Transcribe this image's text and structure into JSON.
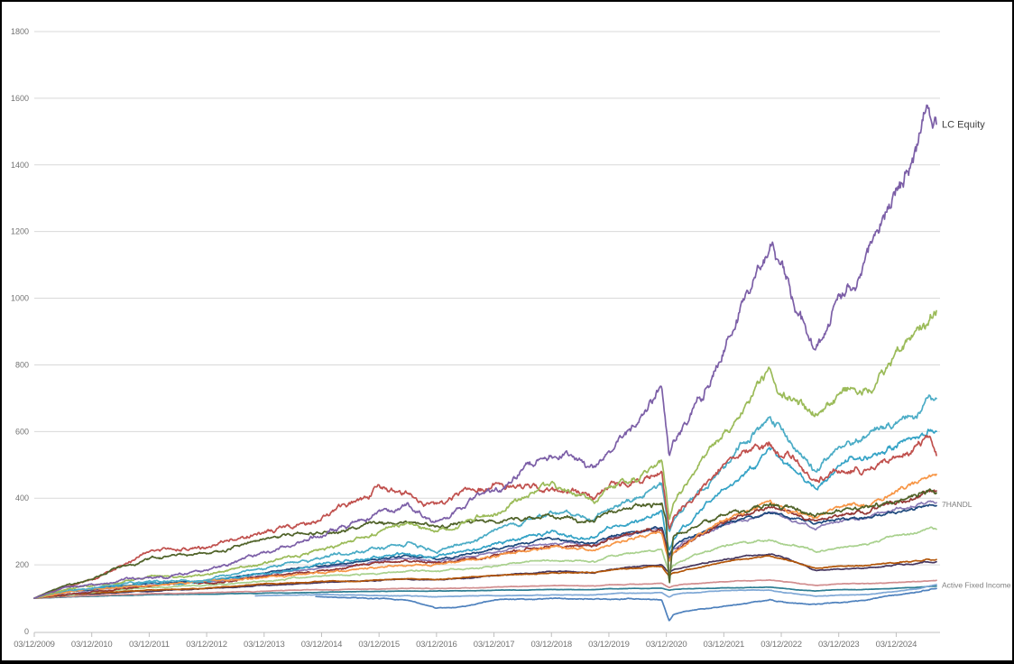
{
  "frame": {
    "background": "#ffffff",
    "border_color": "#000000"
  },
  "chart_data": {
    "type": "line",
    "title": "",
    "xlabel": "",
    "ylabel": "",
    "grid": true,
    "legend_position": "right-edge-annotations",
    "y_axis": {
      "min": 0,
      "max": 1800,
      "step": 200,
      "tick_labels": [
        "0",
        "200",
        "400",
        "600",
        "800",
        "1000",
        "1200",
        "1400",
        "1600",
        "1800"
      ]
    },
    "x_axis": {
      "t_max": 15.7,
      "tick_t": [
        0,
        1,
        2,
        3,
        4,
        5,
        6,
        7,
        8,
        9,
        10,
        11,
        12,
        13,
        14,
        15
      ],
      "tick_labels": [
        "03/12/2009",
        "03/12/2010",
        "03/12/2011",
        "03/12/2012",
        "03/12/2013",
        "03/12/2014",
        "03/12/2015",
        "03/12/2016",
        "03/12/2017",
        "03/12/2018",
        "03/12/2019",
        "03/12/2020",
        "03/12/2021",
        "03/12/2022",
        "03/12/2023",
        "03/12/2024"
      ]
    },
    "style": {
      "grid_color": "#d9d9d9",
      "axis_color": "#bfbfbf",
      "tick_label_color": "#737373",
      "line_width": 1.7
    },
    "anchor_t": [
      0,
      0.5,
      1,
      2,
      3,
      3.85,
      4,
      4.9,
      5,
      6,
      6.5,
      7,
      7.5,
      8,
      9,
      9.75,
      10,
      10.5,
      10.92,
      11,
      11.05,
      11.12,
      11.3,
      12,
      12.8,
      13.1,
      13.6,
      14,
      14.5,
      15,
      15.3,
      15.55,
      15.7
    ],
    "series": [
      {
        "id": "teal",
        "color": "#2E7E93",
        "vol": 0.002,
        "values": [
          100,
          103,
          106,
          110,
          112,
          114,
          115,
          117,
          118,
          120,
          121,
          121,
          122,
          124,
          126,
          126,
          128,
          129,
          130,
          126,
          124,
          126,
          128,
          131,
          133,
          128,
          122,
          125,
          126,
          130,
          132,
          135,
          136
        ]
      },
      {
        "id": "pink",
        "color": "#D18E8F",
        "vol": 0.003,
        "values": [
          100,
          105,
          108,
          113,
          116,
          120,
          121,
          125,
          125,
          128,
          130,
          129,
          131,
          134,
          138,
          137,
          140,
          143,
          145,
          137,
          132,
          138,
          142,
          150,
          155,
          148,
          138,
          142,
          143,
          147,
          149,
          152,
          153
        ]
      },
      {
        "id": "steel-blue",
        "color": "#7FA8D6",
        "vol": 0.003,
        "label": "Active Fixed Income",
        "label_color": "#7f7f7f",
        "label_size": 8.5,
        "values": [
          null,
          null,
          null,
          null,
          null,
          107,
          108,
          110,
          110,
          108,
          107,
          104,
          106,
          108,
          110,
          110,
          113,
          115,
          117,
          109,
          105,
          111,
          115,
          122,
          124,
          116,
          106,
          110,
          111,
          120,
          126,
          135,
          140
        ]
      },
      {
        "id": "blue-late",
        "color": "#4E81BD",
        "vol": 0.006,
        "values": [
          null,
          null,
          null,
          null,
          null,
          null,
          null,
          105,
          104,
          100,
          95,
          70,
          75,
          95,
          100,
          97,
          98,
          97,
          95,
          55,
          32,
          50,
          60,
          75,
          95,
          88,
          82,
          88,
          95,
          110,
          116,
          124,
          128
        ]
      },
      {
        "id": "dark-purple",
        "color": "#45365E",
        "vol": 0.004,
        "values": [
          100,
          107,
          112,
          122,
          128,
          137,
          138,
          146,
          147,
          154,
          157,
          156,
          161,
          168,
          180,
          177,
          186,
          194,
          200,
          183,
          175,
          185,
          192,
          215,
          235,
          220,
          182,
          188,
          190,
          200,
          204,
          209,
          210
        ]
      },
      {
        "id": "brown",
        "color": "#B25508",
        "vol": 0.004,
        "values": [
          100,
          108,
          114,
          124,
          130,
          139,
          140,
          147,
          148,
          155,
          158,
          156,
          162,
          168,
          178,
          175,
          183,
          190,
          196,
          178,
          168,
          178,
          185,
          208,
          228,
          215,
          188,
          196,
          198,
          208,
          211,
          215,
          216
        ]
      },
      {
        "id": "light-green",
        "color": "#A9D18E",
        "vol": 0.006,
        "values": [
          100,
          110,
          118,
          132,
          138,
          150,
          152,
          164,
          165,
          178,
          185,
          178,
          188,
          198,
          218,
          210,
          225,
          238,
          248,
          205,
          180,
          200,
          215,
          255,
          278,
          262,
          242,
          255,
          262,
          285,
          292,
          305,
          310
        ]
      },
      {
        "id": "med-purple",
        "color": "#8A7BB5",
        "vol": 0.006,
        "values": [
          100,
          112,
          122,
          140,
          148,
          166,
          168,
          188,
          190,
          210,
          220,
          210,
          225,
          240,
          268,
          258,
          278,
          295,
          310,
          255,
          225,
          248,
          270,
          320,
          355,
          340,
          310,
          330,
          340,
          365,
          380,
          395,
          393
        ]
      },
      {
        "id": "navy",
        "color": "#1F497D",
        "vol": 0.006,
        "label": "7HANDL",
        "label_color": "#7f7f7f",
        "label_size": 8.5,
        "values": [
          100,
          115,
          125,
          145,
          152,
          173,
          175,
          196,
          198,
          220,
          228,
          218,
          232,
          248,
          278,
          268,
          288,
          305,
          318,
          260,
          230,
          255,
          278,
          325,
          358,
          345,
          320,
          335,
          342,
          360,
          368,
          380,
          382
        ]
      },
      {
        "id": "maroon",
        "color": "#943634",
        "vol": 0.008,
        "values": [
          100,
          112,
          120,
          138,
          145,
          163,
          165,
          183,
          185,
          205,
          215,
          205,
          220,
          235,
          265,
          255,
          275,
          290,
          305,
          245,
          215,
          240,
          265,
          330,
          370,
          350,
          330,
          350,
          360,
          395,
          415,
          430,
          425
        ]
      },
      {
        "id": "cyan-2",
        "color": "#35A3C6",
        "vol": 0.009,
        "values": [
          100,
          118,
          128,
          145,
          150,
          172,
          175,
          198,
          200,
          225,
          235,
          220,
          240,
          265,
          300,
          280,
          310,
          330,
          360,
          290,
          250,
          280,
          310,
          420,
          545,
          500,
          430,
          490,
          520,
          560,
          570,
          610,
          600
        ]
      },
      {
        "id": "orange",
        "color": "#F79646",
        "vol": 0.008,
        "values": [
          100,
          115,
          125,
          140,
          148,
          160,
          162,
          174,
          175,
          190,
          200,
          195,
          210,
          225,
          255,
          245,
          265,
          285,
          300,
          240,
          210,
          235,
          260,
          330,
          385,
          360,
          335,
          360,
          375,
          420,
          445,
          470,
          480
        ]
      },
      {
        "id": "cyan-1",
        "color": "#4BACC6",
        "vol": 0.01,
        "values": [
          100,
          122,
          132,
          150,
          155,
          180,
          185,
          212,
          215,
          250,
          265,
          245,
          270,
          300,
          360,
          330,
          365,
          395,
          430,
          340,
          290,
          325,
          360,
          490,
          650,
          580,
          490,
          560,
          590,
          640,
          650,
          700,
          685
        ]
      },
      {
        "id": "red",
        "color": "#C0504D",
        "vol": 0.011,
        "values": [
          100,
          135,
          152,
          240,
          245,
          295,
          300,
          330,
          335,
          420,
          395,
          365,
          420,
          435,
          430,
          395,
          430,
          435,
          460,
          360,
          300,
          340,
          380,
          490,
          560,
          520,
          460,
          490,
          480,
          520,
          555,
          590,
          520
        ]
      },
      {
        "id": "dark-olive",
        "color": "#4F6228",
        "vol": 0.009,
        "values": [
          100,
          138,
          158,
          220,
          235,
          270,
          275,
          298,
          300,
          320,
          330,
          310,
          325,
          330,
          345,
          330,
          360,
          380,
          385,
          330,
          135,
          290,
          300,
          345,
          385,
          370,
          340,
          355,
          365,
          390,
          400,
          415,
          412
        ]
      },
      {
        "id": "green",
        "color": "#9BBB59",
        "vol": 0.01,
        "values": [
          100,
          125,
          138,
          158,
          165,
          195,
          200,
          240,
          245,
          300,
          325,
          300,
          330,
          355,
          430,
          385,
          430,
          465,
          520,
          420,
          340,
          390,
          430,
          600,
          795,
          720,
          650,
          710,
          750,
          850,
          890,
          930,
          965
        ]
      },
      {
        "id": "lc-equity",
        "color": "#7C5FA7",
        "vol": 0.011,
        "label": "LC Equity",
        "label_color": "#404040",
        "label_size": 11,
        "values": [
          100,
          130,
          143,
          162,
          185,
          228,
          235,
          293,
          300,
          350,
          360,
          330,
          370,
          420,
          540,
          495,
          540,
          615,
          735,
          600,
          512,
          570,
          620,
          850,
          1185,
          1060,
          835,
          980,
          1090,
          1310,
          1420,
          1555,
          1520
        ]
      }
    ]
  }
}
